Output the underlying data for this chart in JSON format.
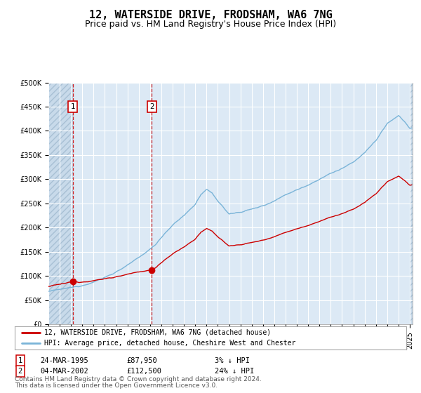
{
  "title": "12, WATERSIDE DRIVE, FRODSHAM, WA6 7NG",
  "subtitle": "Price paid vs. HM Land Registry's House Price Index (HPI)",
  "legend_line1": "12, WATERSIDE DRIVE, FRODSHAM, WA6 7NG (detached house)",
  "legend_line2": "HPI: Average price, detached house, Cheshire West and Chester",
  "transaction1_date_str": "24-MAR-1995",
  "transaction1_price": 87950,
  "transaction1_label": "3% ↓ HPI",
  "transaction2_date_str": "04-MAR-2002",
  "transaction2_price": 112500,
  "transaction2_label": "24% ↓ HPI",
  "footnote1": "Contains HM Land Registry data © Crown copyright and database right 2024.",
  "footnote2": "This data is licensed under the Open Government Licence v3.0.",
  "hpi_color": "#7ab4d8",
  "property_color": "#cc0000",
  "marker_color": "#cc0000",
  "vline_color": "#cc0000",
  "background_color": "#ffffff",
  "plot_bg_color": "#dce9f5",
  "grid_color": "#ffffff",
  "ylim": [
    0,
    500000
  ],
  "yticks": [
    0,
    50000,
    100000,
    150000,
    200000,
    250000,
    300000,
    350000,
    400000,
    450000,
    500000
  ],
  "title_fontsize": 11,
  "subtitle_fontsize": 9,
  "tick_fontsize": 7,
  "legend_fontsize": 7.5,
  "footnote_fontsize": 6.5
}
